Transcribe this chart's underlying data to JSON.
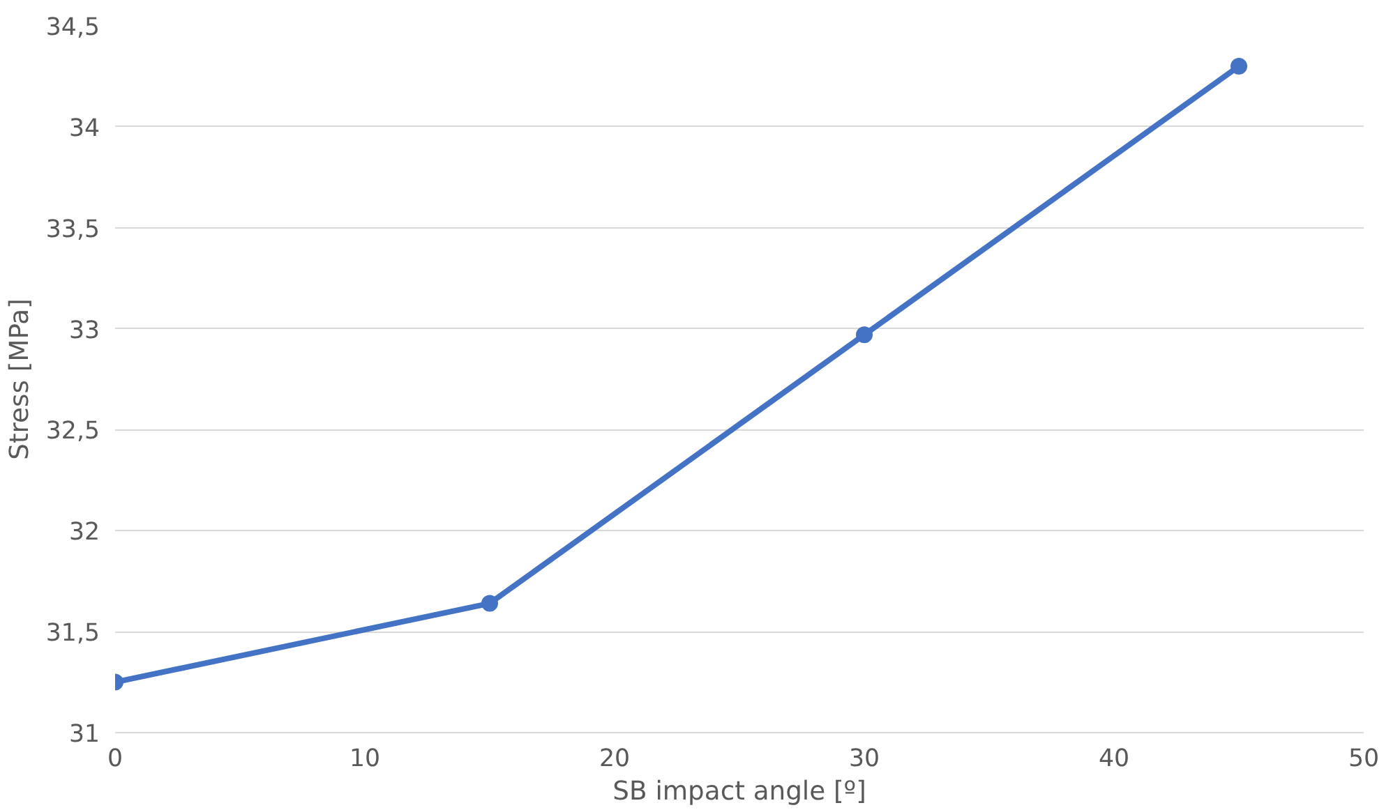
{
  "chart_data": {
    "type": "line",
    "xlabel": "SB impact angle [º]",
    "ylabel": "Stress [MPa]",
    "x": [
      0,
      15,
      30,
      45
    ],
    "series": [
      {
        "color": "#4472c4",
        "values": [
          31.25,
          31.64,
          32.97,
          34.3
        ]
      }
    ],
    "xlim": [
      0,
      50
    ],
    "xticks": [
      0,
      10,
      20,
      30,
      40,
      50
    ],
    "ylim": [
      31,
      34.5
    ],
    "yticks": [
      31,
      {
        "value": 31.5,
        "label": "31,5"
      },
      32,
      {
        "value": 32.5,
        "label": "32,5"
      },
      33,
      {
        "value": 33.5,
        "label": "33,5"
      },
      34,
      {
        "value": 34.5,
        "label": "34,5"
      }
    ],
    "grid": "y",
    "marker": "circle",
    "line_style": "solid"
  }
}
